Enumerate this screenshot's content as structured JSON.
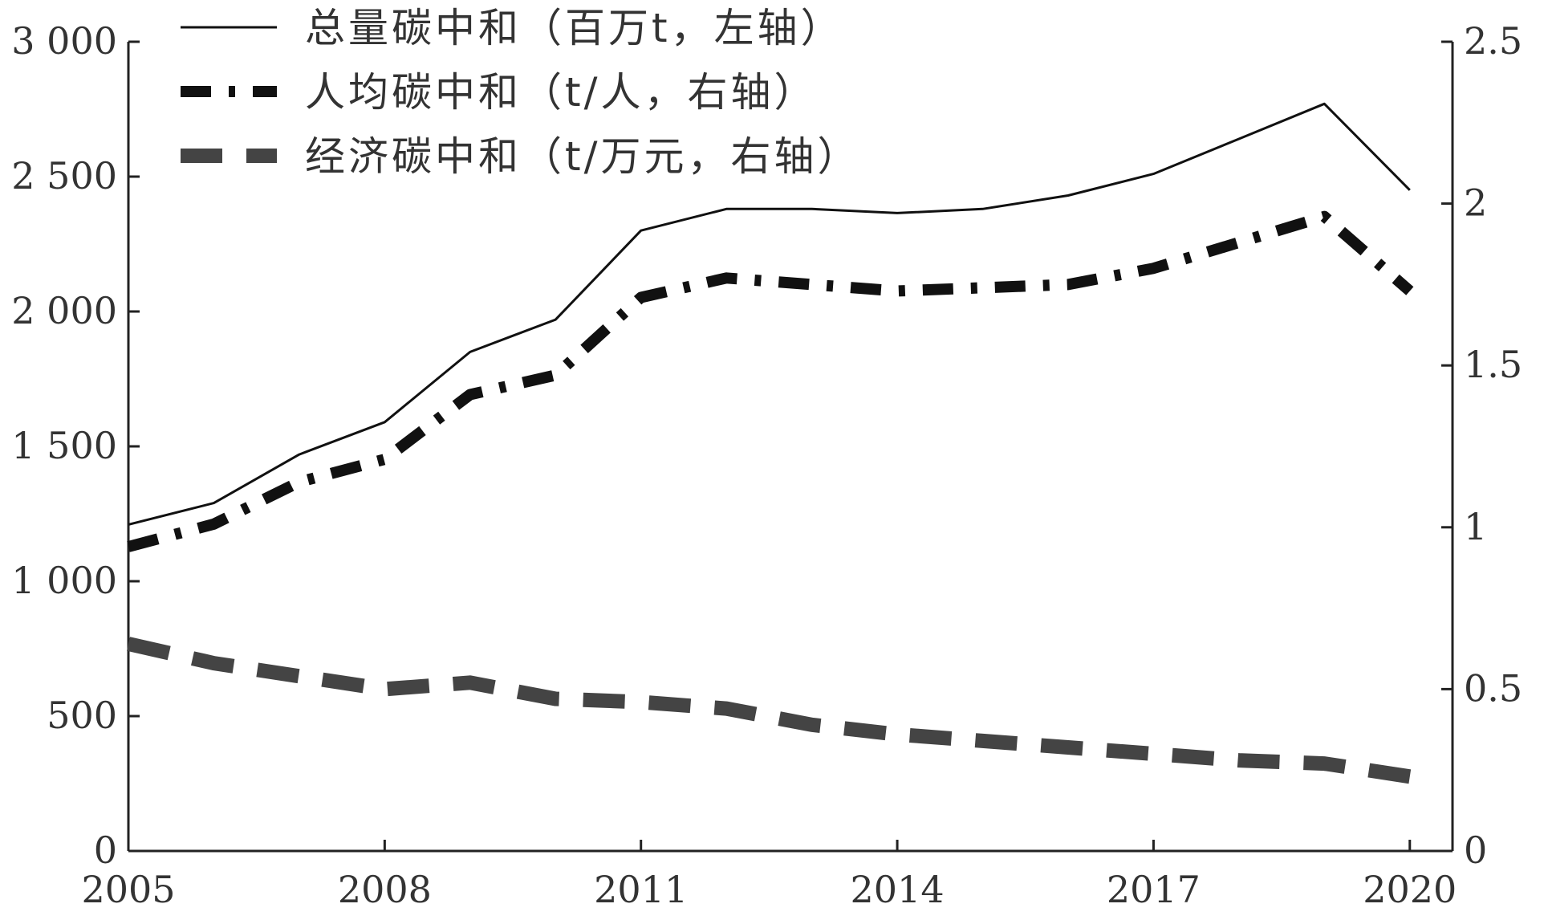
{
  "chart_data": {
    "type": "line",
    "x": [
      2005,
      2006,
      2007,
      2008,
      2009,
      2010,
      2011,
      2012,
      2013,
      2014,
      2015,
      2016,
      2017,
      2018,
      2019,
      2020
    ],
    "x_tick_labels": [
      "2005",
      "2008",
      "2011",
      "2014",
      "2017",
      "2020"
    ],
    "xlim": [
      2005,
      2020.5
    ],
    "ylim_left": [
      0,
      3000
    ],
    "left_tick_labels": [
      "0",
      "500",
      "1 000",
      "1 500",
      "2 000",
      "2 500",
      "3 000"
    ],
    "ylim_right": [
      0,
      2.5
    ],
    "right_tick_labels": [
      "0",
      "0.5",
      "1",
      "1.5",
      "2",
      "2.5"
    ],
    "legend_position": "top-left",
    "grid": false,
    "series": [
      {
        "name": "总量碳中和（百万t，左轴）",
        "axis": "left",
        "style": "solid",
        "color": "#111111",
        "values": [
          1210,
          1290,
          1470,
          1590,
          1850,
          1970,
          2300,
          2380,
          2380,
          2365,
          2380,
          2430,
          2510,
          2640,
          2770,
          2450
        ]
      },
      {
        "name": "人均碳中和（t/人，右轴）",
        "axis": "right",
        "style": "dash-dot",
        "color": "#111111",
        "values": [
          0.94,
          1.01,
          1.14,
          1.21,
          1.41,
          1.47,
          1.71,
          1.77,
          1.75,
          1.73,
          1.74,
          1.75,
          1.8,
          1.88,
          1.96,
          1.73
        ]
      },
      {
        "name": "经济碳中和（t/万元，右轴）",
        "axis": "right",
        "style": "dashed",
        "color": "#444444",
        "values": [
          0.64,
          0.58,
          0.54,
          0.5,
          0.52,
          0.47,
          0.46,
          0.44,
          0.39,
          0.36,
          0.34,
          0.32,
          0.3,
          0.28,
          0.27,
          0.23
        ]
      }
    ]
  }
}
